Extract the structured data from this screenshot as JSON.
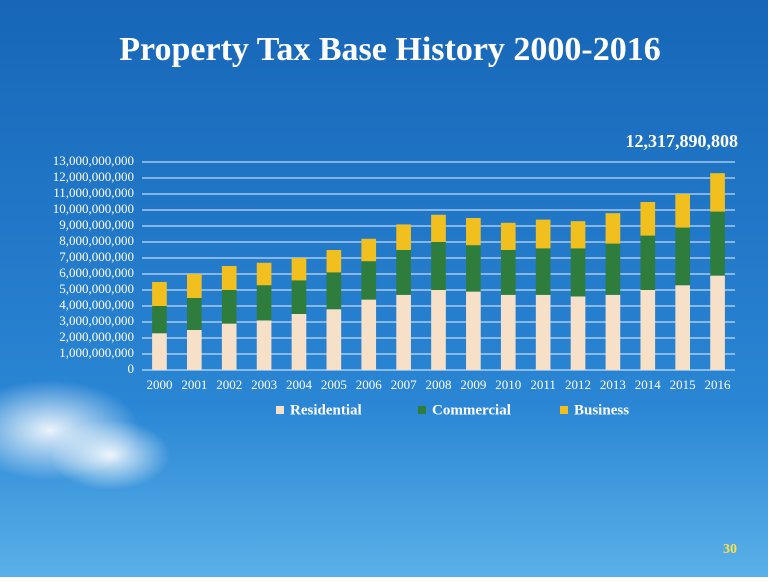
{
  "chart_data": {
    "type": "stacked_bar",
    "title": "Property Tax Base History 2000-2016",
    "annotation": "12,317,890,808",
    "categories": [
      "2000",
      "2001",
      "2002",
      "2003",
      "2004",
      "2005",
      "2006",
      "2007",
      "2008",
      "2009",
      "2010",
      "2011",
      "2012",
      "2013",
      "2014",
      "2015",
      "2016"
    ],
    "series": [
      {
        "name": "Residential",
        "color": "#f7e0c8",
        "values": [
          2300000000,
          2500000000,
          2900000000,
          3100000000,
          3500000000,
          3800000000,
          4400000000,
          4700000000,
          5000000000,
          4900000000,
          4700000000,
          4700000000,
          4600000000,
          4700000000,
          5000000000,
          5300000000,
          5900000000
        ]
      },
      {
        "name": "Commercial",
        "color": "#2f7d3c",
        "values": [
          1700000000,
          2000000000,
          2100000000,
          2200000000,
          2100000000,
          2300000000,
          2400000000,
          2800000000,
          3000000000,
          2900000000,
          2800000000,
          2900000000,
          3000000000,
          3200000000,
          3400000000,
          3600000000,
          4000000000
        ]
      },
      {
        "name": "Business",
        "color": "#f2c01e",
        "values": [
          1500000000,
          1500000000,
          1500000000,
          1400000000,
          1400000000,
          1400000000,
          1400000000,
          1600000000,
          1700000000,
          1700000000,
          1700000000,
          1800000000,
          1700000000,
          1900000000,
          2100000000,
          2100000000,
          2400000000
        ]
      }
    ],
    "ylim": [
      0,
      13000000000
    ],
    "yticks": [
      0,
      {
        "value": 1000000000,
        "label": "1,000,000,000"
      },
      {
        "value": 2000000000,
        "label": "2,000,000,000"
      },
      {
        "value": 3000000000,
        "label": "3,000,000,000"
      },
      {
        "value": 4000000000,
        "label": "4,000,000,000"
      },
      {
        "value": 5000000000,
        "label": "5,000,000,000"
      },
      {
        "value": 6000000000,
        "label": "6,000,000,000"
      },
      {
        "value": 7000000000,
        "label": "7,000,000,000"
      },
      {
        "value": 8000000000,
        "label": "8,000,000,000"
      },
      {
        "value": 9000000000,
        "label": "9,000,000,000"
      },
      {
        "value": 10000000000,
        "label": "10,000,000,000"
      },
      {
        "value": 11000000000,
        "label": "11,000,000,000"
      },
      {
        "value": 12000000000,
        "label": "12,000,000,000"
      },
      {
        "value": 13000000000,
        "label": "13,000,000,000"
      }
    ],
    "grid": true,
    "legend": "bottom"
  },
  "page_number": "30"
}
